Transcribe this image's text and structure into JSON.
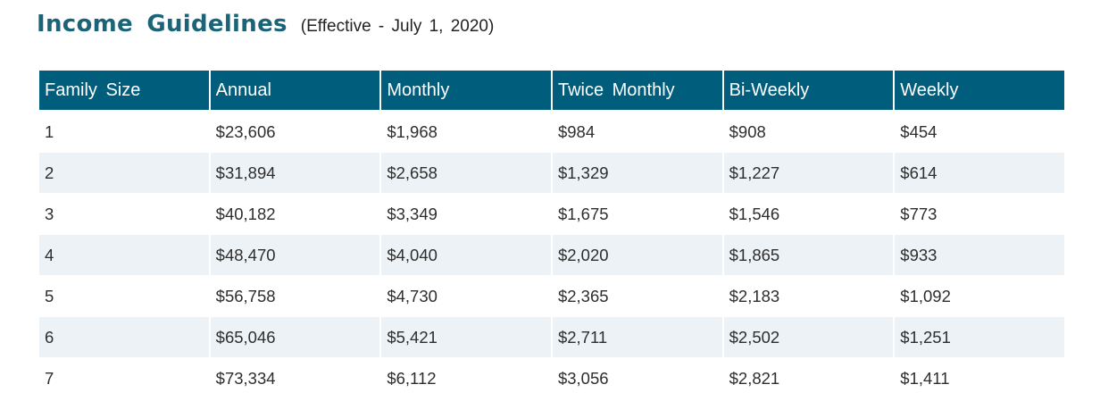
{
  "header": {
    "title": "Income Guidelines",
    "subtitle": "(Effective - July 1, 2020)"
  },
  "table": {
    "columns": [
      "Family Size",
      "Annual",
      "Monthly",
      "Twice Monthly",
      "Bi-Weekly",
      "Weekly"
    ],
    "rows": [
      [
        "1",
        "$23,606",
        "$1,968",
        "$984",
        "$908",
        "$454"
      ],
      [
        "2",
        "$31,894",
        "$2,658",
        "$1,329",
        "$1,227",
        "$614"
      ],
      [
        "3",
        "$40,182",
        "$3,349",
        "$1,675",
        "$1,546",
        "$773"
      ],
      [
        "4",
        "$48,470",
        "$4,040",
        "$2,020",
        "$1,865",
        "$933"
      ],
      [
        "5",
        "$56,758",
        "$4,730",
        "$2,365",
        "$2,183",
        "$1,092"
      ],
      [
        "6",
        "$65,046",
        "$5,421",
        "$2,711",
        "$2,502",
        "$1,251"
      ],
      [
        "7",
        "$73,334",
        "$6,112",
        "$3,056",
        "$2,821",
        "$1,411"
      ]
    ]
  },
  "colors": {
    "title": "#1b6478",
    "header_background": "#005e7c",
    "stripe_background": "#ecf2f5"
  }
}
